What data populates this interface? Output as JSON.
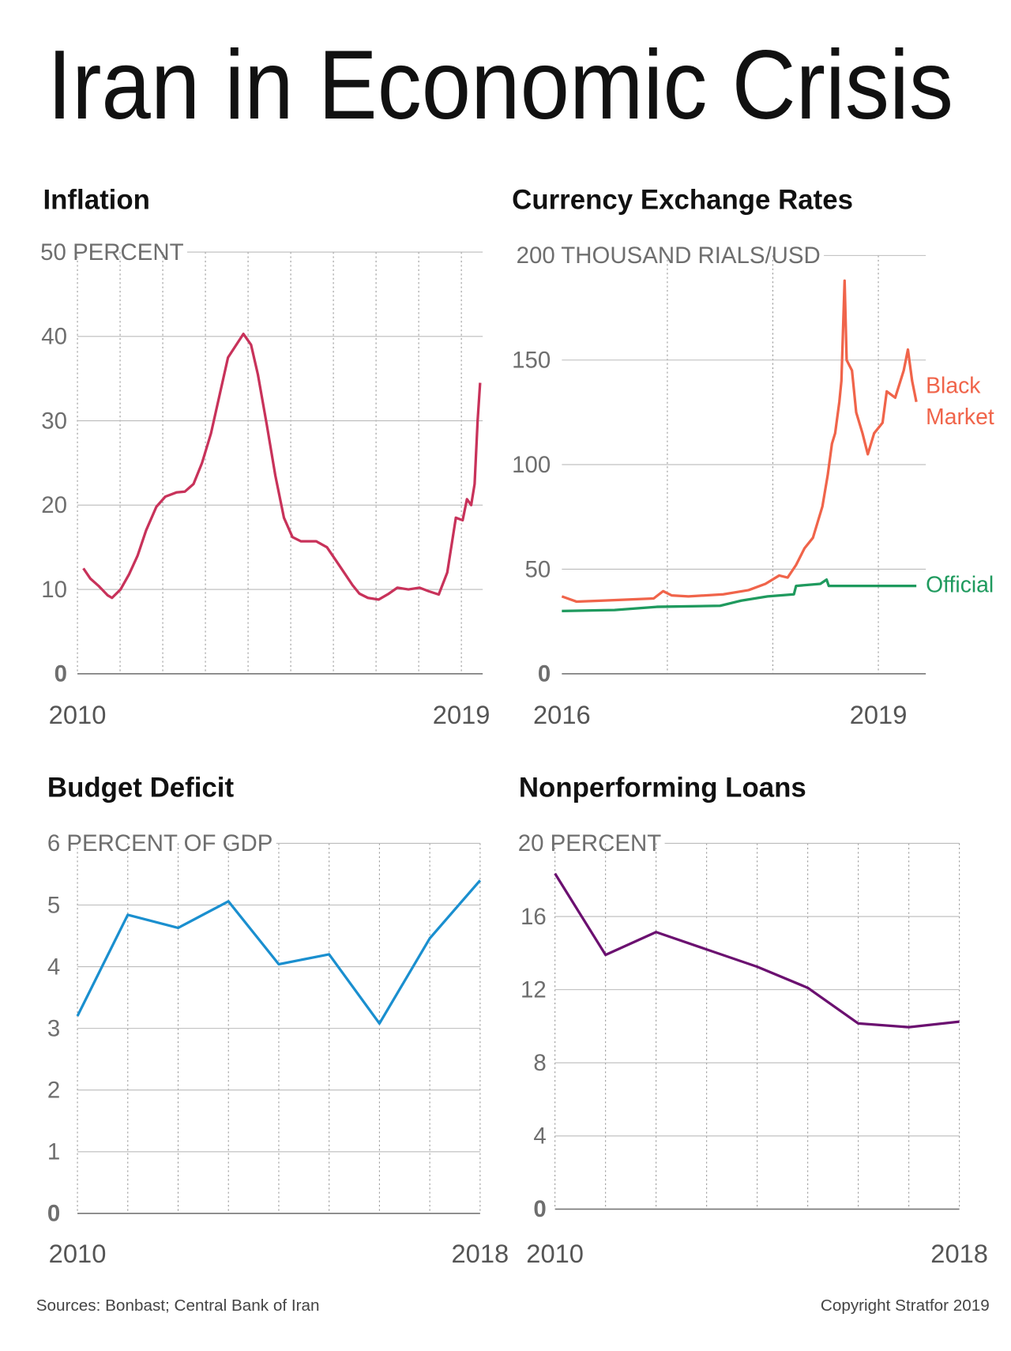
{
  "title": "Iran in Economic Crisis",
  "chart_data": [
    {
      "type": "line",
      "title": "Inflation",
      "color": "#c8325a",
      "x": [
        2010.14,
        2010.3,
        2010.5,
        2010.71,
        2010.81,
        2011.01,
        2011.21,
        2011.41,
        2011.61,
        2011.85,
        2012.06,
        2012.32,
        2012.52,
        2012.72,
        2012.92,
        2013.13,
        2013.33,
        2013.53,
        2013.89,
        2014.07,
        2014.23,
        2014.44,
        2014.64,
        2014.84,
        2015.04,
        2015.24,
        2015.6,
        2015.85,
        2016.05,
        2016.25,
        2016.45,
        2016.61,
        2016.81,
        2017.06,
        2017.3,
        2017.5,
        2017.76,
        2018.02,
        2018.23,
        2018.47,
        2018.67,
        2018.87,
        2019.03,
        2019.13,
        2019.23,
        2019.31,
        2019.38,
        2019.44
      ],
      "values": [
        12.5,
        11.3,
        10.4,
        9.3,
        9.0,
        10.0,
        11.8,
        14.0,
        17.0,
        19.8,
        21.0,
        21.5,
        21.6,
        22.5,
        25.0,
        28.5,
        33.0,
        37.5,
        40.3,
        39.0,
        35.5,
        29.5,
        23.5,
        18.5,
        16.2,
        15.7,
        15.7,
        15.0,
        13.5,
        12.0,
        10.5,
        9.5,
        9.0,
        8.8,
        9.5,
        10.2,
        10.0,
        10.2,
        9.8,
        9.4,
        12.0,
        18.5,
        18.2,
        20.7,
        20.0,
        22.5,
        30.0,
        34.5
      ],
      "xlim": [
        2010,
        2019.5
      ],
      "xticks": [
        2010,
        2019
      ],
      "xgrid": [
        2010,
        2011,
        2012,
        2013,
        2014,
        2015,
        2016,
        2017,
        2018,
        2019
      ],
      "ylim": [
        0,
        50
      ],
      "yticks": [
        0,
        10,
        20,
        30,
        40,
        {
          "value": 50,
          "label": "50 PERCENT"
        }
      ]
    },
    {
      "type": "line",
      "title": "Currency Exchange Rates",
      "series": [
        {
          "name": "Black Market",
          "color": "#f0644a",
          "x": [
            2016.0,
            2016.14,
            2016.38,
            2016.87,
            2016.96,
            2017.04,
            2017.2,
            2017.53,
            2017.77,
            2017.93,
            2018.06,
            2018.14,
            2018.22,
            2018.3,
            2018.38,
            2018.47,
            2018.52,
            2018.56,
            2018.59,
            2018.63,
            2018.65,
            2018.68,
            2018.7,
            2018.75,
            2018.79,
            2018.85,
            2018.9,
            2018.96,
            2019.04,
            2019.08,
            2019.16,
            2019.24,
            2019.28,
            2019.32,
            2019.36
          ],
          "values": [
            37,
            34.5,
            35,
            36,
            39.5,
            37.5,
            37,
            38,
            40,
            43,
            47,
            46,
            52,
            60,
            65,
            80,
            95,
            110,
            115,
            130,
            140,
            188,
            150,
            145,
            125,
            115,
            105,
            115,
            120,
            135,
            132,
            145,
            155,
            140,
            130
          ]
        },
        {
          "name": "Official",
          "color": "#1f9a5e",
          "x": [
            2016.0,
            2016.5,
            2016.9,
            2017.5,
            2017.7,
            2017.95,
            2018.2,
            2018.22,
            2018.45,
            2018.51,
            2018.53,
            2019.36
          ],
          "values": [
            30,
            30.5,
            32,
            32.5,
            35,
            37,
            38,
            42,
            43,
            45,
            42,
            42
          ]
        }
      ],
      "xlim": [
        2016,
        2019.45
      ],
      "xticks": [
        2016,
        2019
      ],
      "xgrid": [
        2017,
        2018,
        2019
      ],
      "ylim": [
        0,
        200
      ],
      "yticks": [
        0,
        50,
        100,
        150,
        {
          "value": 200,
          "label": "200 THOUSAND RIALS/USD"
        }
      ]
    },
    {
      "type": "line",
      "title": "Budget Deficit",
      "color": "#1a8fcf",
      "categories": [
        "2010",
        null,
        null,
        null,
        null,
        null,
        null,
        null,
        "2018"
      ],
      "values": [
        3.2,
        4.84,
        4.63,
        5.06,
        4.04,
        4.2,
        3.08,
        4.46,
        5.4
      ],
      "ylim": [
        0,
        6
      ],
      "yticks": [
        0,
        1,
        2,
        3,
        4,
        5,
        {
          "value": 6,
          "label": "6 PERCENT OF GDP"
        }
      ]
    },
    {
      "type": "line",
      "title": "Nonperforming Loans",
      "color": "#6b1070",
      "categories": [
        "2010",
        null,
        null,
        null,
        null,
        null,
        null,
        null,
        "2018"
      ],
      "values": [
        18.35,
        13.9,
        15.15,
        14.2,
        13.25,
        12.1,
        10.15,
        9.95,
        10.25
      ],
      "ylim": [
        0,
        20
      ],
      "yticks": [
        0,
        4,
        8,
        12,
        16,
        {
          "value": 20,
          "label": "20 PERCENT"
        }
      ]
    }
  ],
  "footer": {
    "sources": "Sources: Bonbast; Central Bank of Iran",
    "copyright": "Copyright Stratfor 2019"
  }
}
